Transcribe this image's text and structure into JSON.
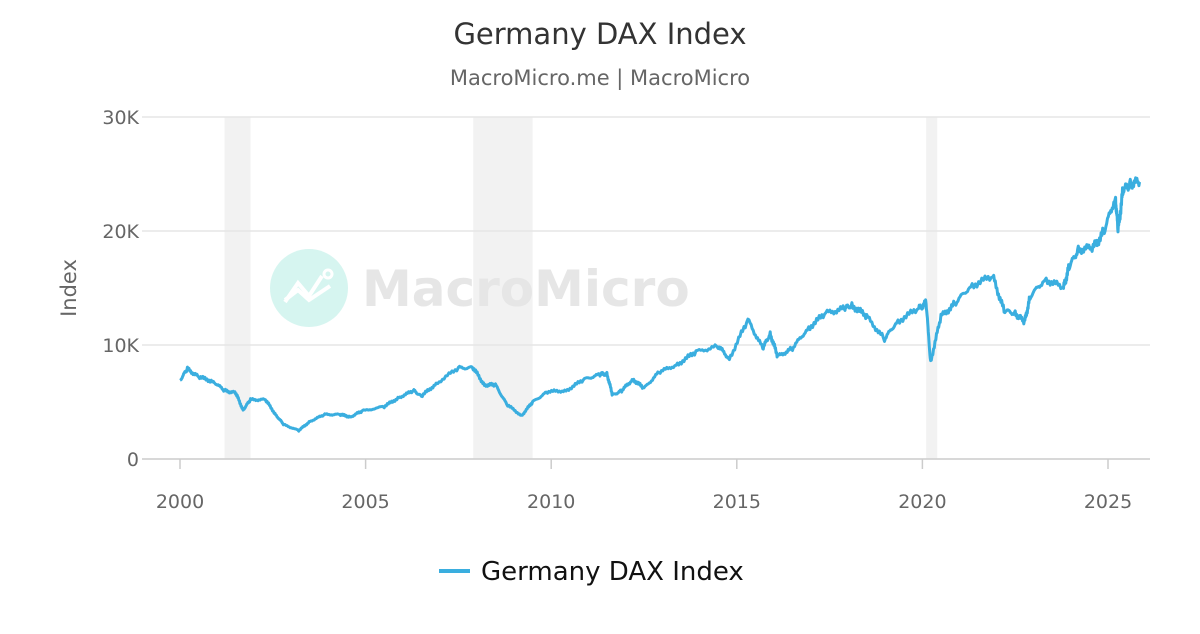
{
  "chart_data": {
    "type": "line",
    "title": "Germany DAX Index",
    "subtitle": "MacroMicro.me | MacroMicro",
    "ylabel": "Index",
    "xlabel": "",
    "xlim": [
      2000,
      2026.1
    ],
    "ylim": [
      0,
      30000
    ],
    "x_ticks": [
      2000,
      2005,
      2010,
      2015,
      2020,
      2025
    ],
    "x_tick_labels": [
      "2000",
      "2005",
      "2010",
      "2015",
      "2020",
      "2025"
    ],
    "y_ticks": [
      0,
      10000,
      20000,
      30000
    ],
    "y_tick_labels": [
      "0",
      "10K",
      "20K",
      "30K"
    ],
    "grid": "horizontal",
    "legend_position": "bottom-center",
    "shaded_periods": [
      [
        2001.2,
        2001.9
      ],
      [
        2007.9,
        2009.5
      ],
      [
        2020.1,
        2020.4
      ]
    ],
    "series": [
      {
        "name": "Germany DAX Index",
        "color": "#3aaedf",
        "x": [
          2000.0,
          2000.2,
          2000.5,
          2000.9,
          2001.2,
          2001.5,
          2001.7,
          2001.9,
          2002.3,
          2002.6,
          2002.8,
          2003.2,
          2003.5,
          2003.9,
          2004.3,
          2004.6,
          2004.9,
          2005.5,
          2005.9,
          2006.3,
          2006.5,
          2006.9,
          2007.5,
          2007.9,
          2008.2,
          2008.5,
          2008.8,
          2009.2,
          2009.5,
          2009.9,
          2010.4,
          2010.9,
          2011.3,
          2011.5,
          2011.65,
          2011.9,
          2012.2,
          2012.5,
          2012.9,
          2013.4,
          2013.9,
          2014.5,
          2014.8,
          2015.3,
          2015.7,
          2015.9,
          2016.1,
          2016.5,
          2016.9,
          2017.4,
          2017.9,
          2018.1,
          2018.5,
          2018.98,
          2019.3,
          2019.9,
          2020.1,
          2020.22,
          2020.5,
          2020.9,
          2021.3,
          2021.9,
          2022.2,
          2022.5,
          2022.75,
          2022.9,
          2023.3,
          2023.8,
          2023.95,
          2024.2,
          2024.6,
          2024.9,
          2025.2,
          2025.27,
          2025.4,
          2025.6,
          2025.85
        ],
        "values": [
          6900,
          7900,
          7200,
          6800,
          6000,
          5800,
          4300,
          5200,
          5200,
          3800,
          3000,
          2500,
          3300,
          3900,
          3900,
          3700,
          4200,
          4600,
          5400,
          6000,
          5500,
          6600,
          8000,
          8000,
          6500,
          6500,
          4800,
          3800,
          5000,
          5900,
          6000,
          7000,
          7400,
          7500,
          5600,
          6000,
          7000,
          6200,
          7600,
          8300,
          9400,
          9900,
          8800,
          12200,
          9700,
          11000,
          9000,
          9700,
          11400,
          12800,
          13200,
          13500,
          12500,
          10500,
          12000,
          13200,
          13700,
          8500,
          12500,
          13700,
          15200,
          16000,
          13000,
          12800,
          12000,
          14200,
          15800,
          15000,
          16800,
          18400,
          18500,
          20000,
          23000,
          20000,
          23500,
          24200,
          24300
        ]
      }
    ]
  },
  "watermark": {
    "text": "MacroMicro"
  }
}
